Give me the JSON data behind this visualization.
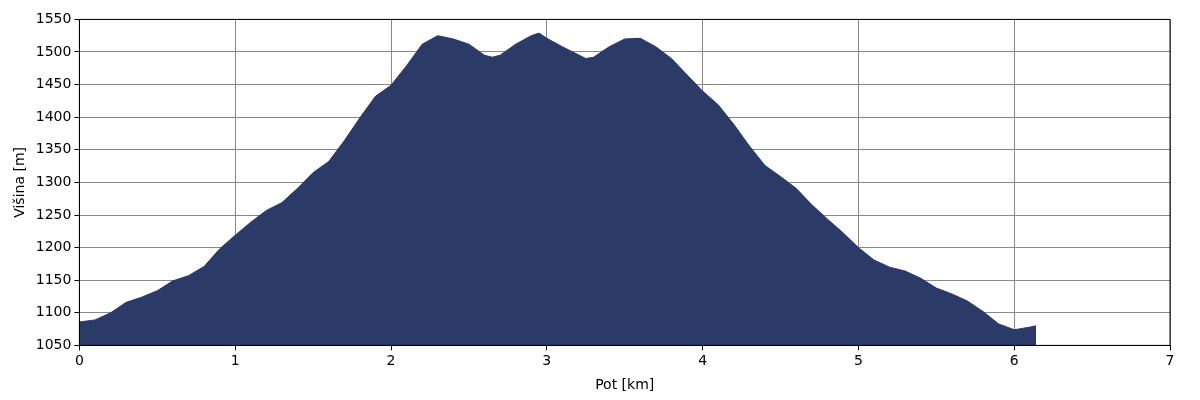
{
  "chart_data": {
    "type": "area",
    "xlabel": "Pot [km]",
    "ylabel": "Višina [m]",
    "x": [
      0,
      0.1,
      0.2,
      0.3,
      0.4,
      0.5,
      0.6,
      0.7,
      0.8,
      0.9,
      1.0,
      1.1,
      1.2,
      1.3,
      1.4,
      1.5,
      1.6,
      1.7,
      1.8,
      1.9,
      2.0,
      2.1,
      2.2,
      2.3,
      2.4,
      2.5,
      2.6,
      2.65,
      2.7,
      2.8,
      2.9,
      2.95,
      3.0,
      3.1,
      3.2,
      3.25,
      3.3,
      3.4,
      3.5,
      3.6,
      3.7,
      3.8,
      3.9,
      4.0,
      4.1,
      4.2,
      4.3,
      4.4,
      4.5,
      4.6,
      4.7,
      4.8,
      4.9,
      5.0,
      5.1,
      5.2,
      5.3,
      5.4,
      5.5,
      5.6,
      5.7,
      5.8,
      5.9,
      6.0,
      6.1,
      6.14
    ],
    "series": [
      {
        "color": "#2b3a66",
        "values": [
          1086,
          1089,
          1100,
          1116,
          1124,
          1134,
          1149,
          1157,
          1171,
          1198,
          1219,
          1239,
          1257,
          1269,
          1291,
          1315,
          1332,
          1364,
          1399,
          1432,
          1449,
          1479,
          1512,
          1525,
          1520,
          1512,
          1495,
          1492,
          1495,
          1512,
          1525,
          1529,
          1521,
          1508,
          1496,
          1490,
          1492,
          1508,
          1520,
          1521,
          1508,
          1490,
          1465,
          1440,
          1419,
          1389,
          1356,
          1326,
          1309,
          1291,
          1266,
          1244,
          1223,
          1200,
          1181,
          1170,
          1164,
          1153,
          1138,
          1129,
          1118,
          1102,
          1083,
          1074,
          1078,
          1080
        ]
      }
    ],
    "xlim": [
      0,
      7
    ],
    "xticks": [
      0,
      1,
      2,
      3,
      4,
      5,
      6,
      7
    ],
    "ylim": [
      1050,
      1550
    ],
    "yticks": [
      1050,
      1100,
      1150,
      1200,
      1250,
      1300,
      1350,
      1400,
      1450,
      1500,
      1550
    ],
    "grid": true,
    "legend": false
  }
}
